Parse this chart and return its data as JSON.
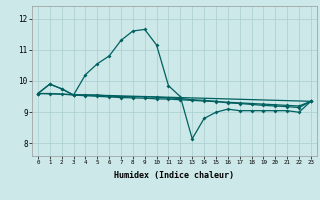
{
  "title": "",
  "xlabel": "Humidex (Indice chaleur)",
  "bg_color": "#cce8e8",
  "grid_color": "#aacece",
  "line_color": "#006060",
  "xlim": [
    -0.5,
    23.5
  ],
  "ylim": [
    7.6,
    12.4
  ],
  "yticks": [
    8,
    9,
    10,
    11,
    12
  ],
  "line1_x": [
    0,
    1,
    2,
    3,
    4,
    5,
    6,
    7,
    8,
    9,
    10,
    11,
    12,
    13,
    14,
    15,
    16,
    17,
    18,
    19,
    20,
    21,
    22,
    23
  ],
  "line1_y": [
    9.6,
    9.9,
    9.75,
    9.55,
    10.2,
    10.55,
    10.8,
    11.3,
    11.6,
    11.65,
    11.15,
    9.85,
    9.5,
    8.15,
    8.8,
    9.0,
    9.1,
    9.05,
    9.05,
    9.05,
    9.05,
    9.05,
    9.0,
    9.35
  ],
  "line2_x": [
    0,
    1,
    2,
    3,
    4,
    5,
    6,
    7,
    8,
    9,
    10,
    11,
    12,
    13,
    14,
    15,
    16,
    17,
    18,
    19,
    20,
    21,
    22,
    23
  ],
  "line2_y": [
    9.6,
    9.9,
    9.75,
    9.55,
    9.55,
    9.55,
    9.52,
    9.5,
    9.5,
    9.5,
    9.48,
    9.46,
    9.44,
    9.4,
    9.38,
    9.35,
    9.3,
    9.28,
    9.25,
    9.22,
    9.2,
    9.18,
    9.15,
    9.35
  ],
  "line3_x": [
    0,
    1,
    2,
    3,
    4,
    5,
    6,
    7,
    8,
    9,
    10,
    11,
    12,
    13,
    14,
    15,
    16,
    17,
    18,
    19,
    20,
    21,
    22,
    23
  ],
  "line3_y": [
    9.6,
    9.6,
    9.58,
    9.55,
    9.53,
    9.51,
    9.49,
    9.47,
    9.46,
    9.45,
    9.43,
    9.42,
    9.4,
    9.38,
    9.36,
    9.34,
    9.32,
    9.3,
    9.28,
    9.26,
    9.24,
    9.22,
    9.2,
    9.35
  ],
  "line4_x": [
    0,
    23
  ],
  "line4_y": [
    9.6,
    9.35
  ],
  "markersize": 2.0,
  "linewidth": 0.9
}
